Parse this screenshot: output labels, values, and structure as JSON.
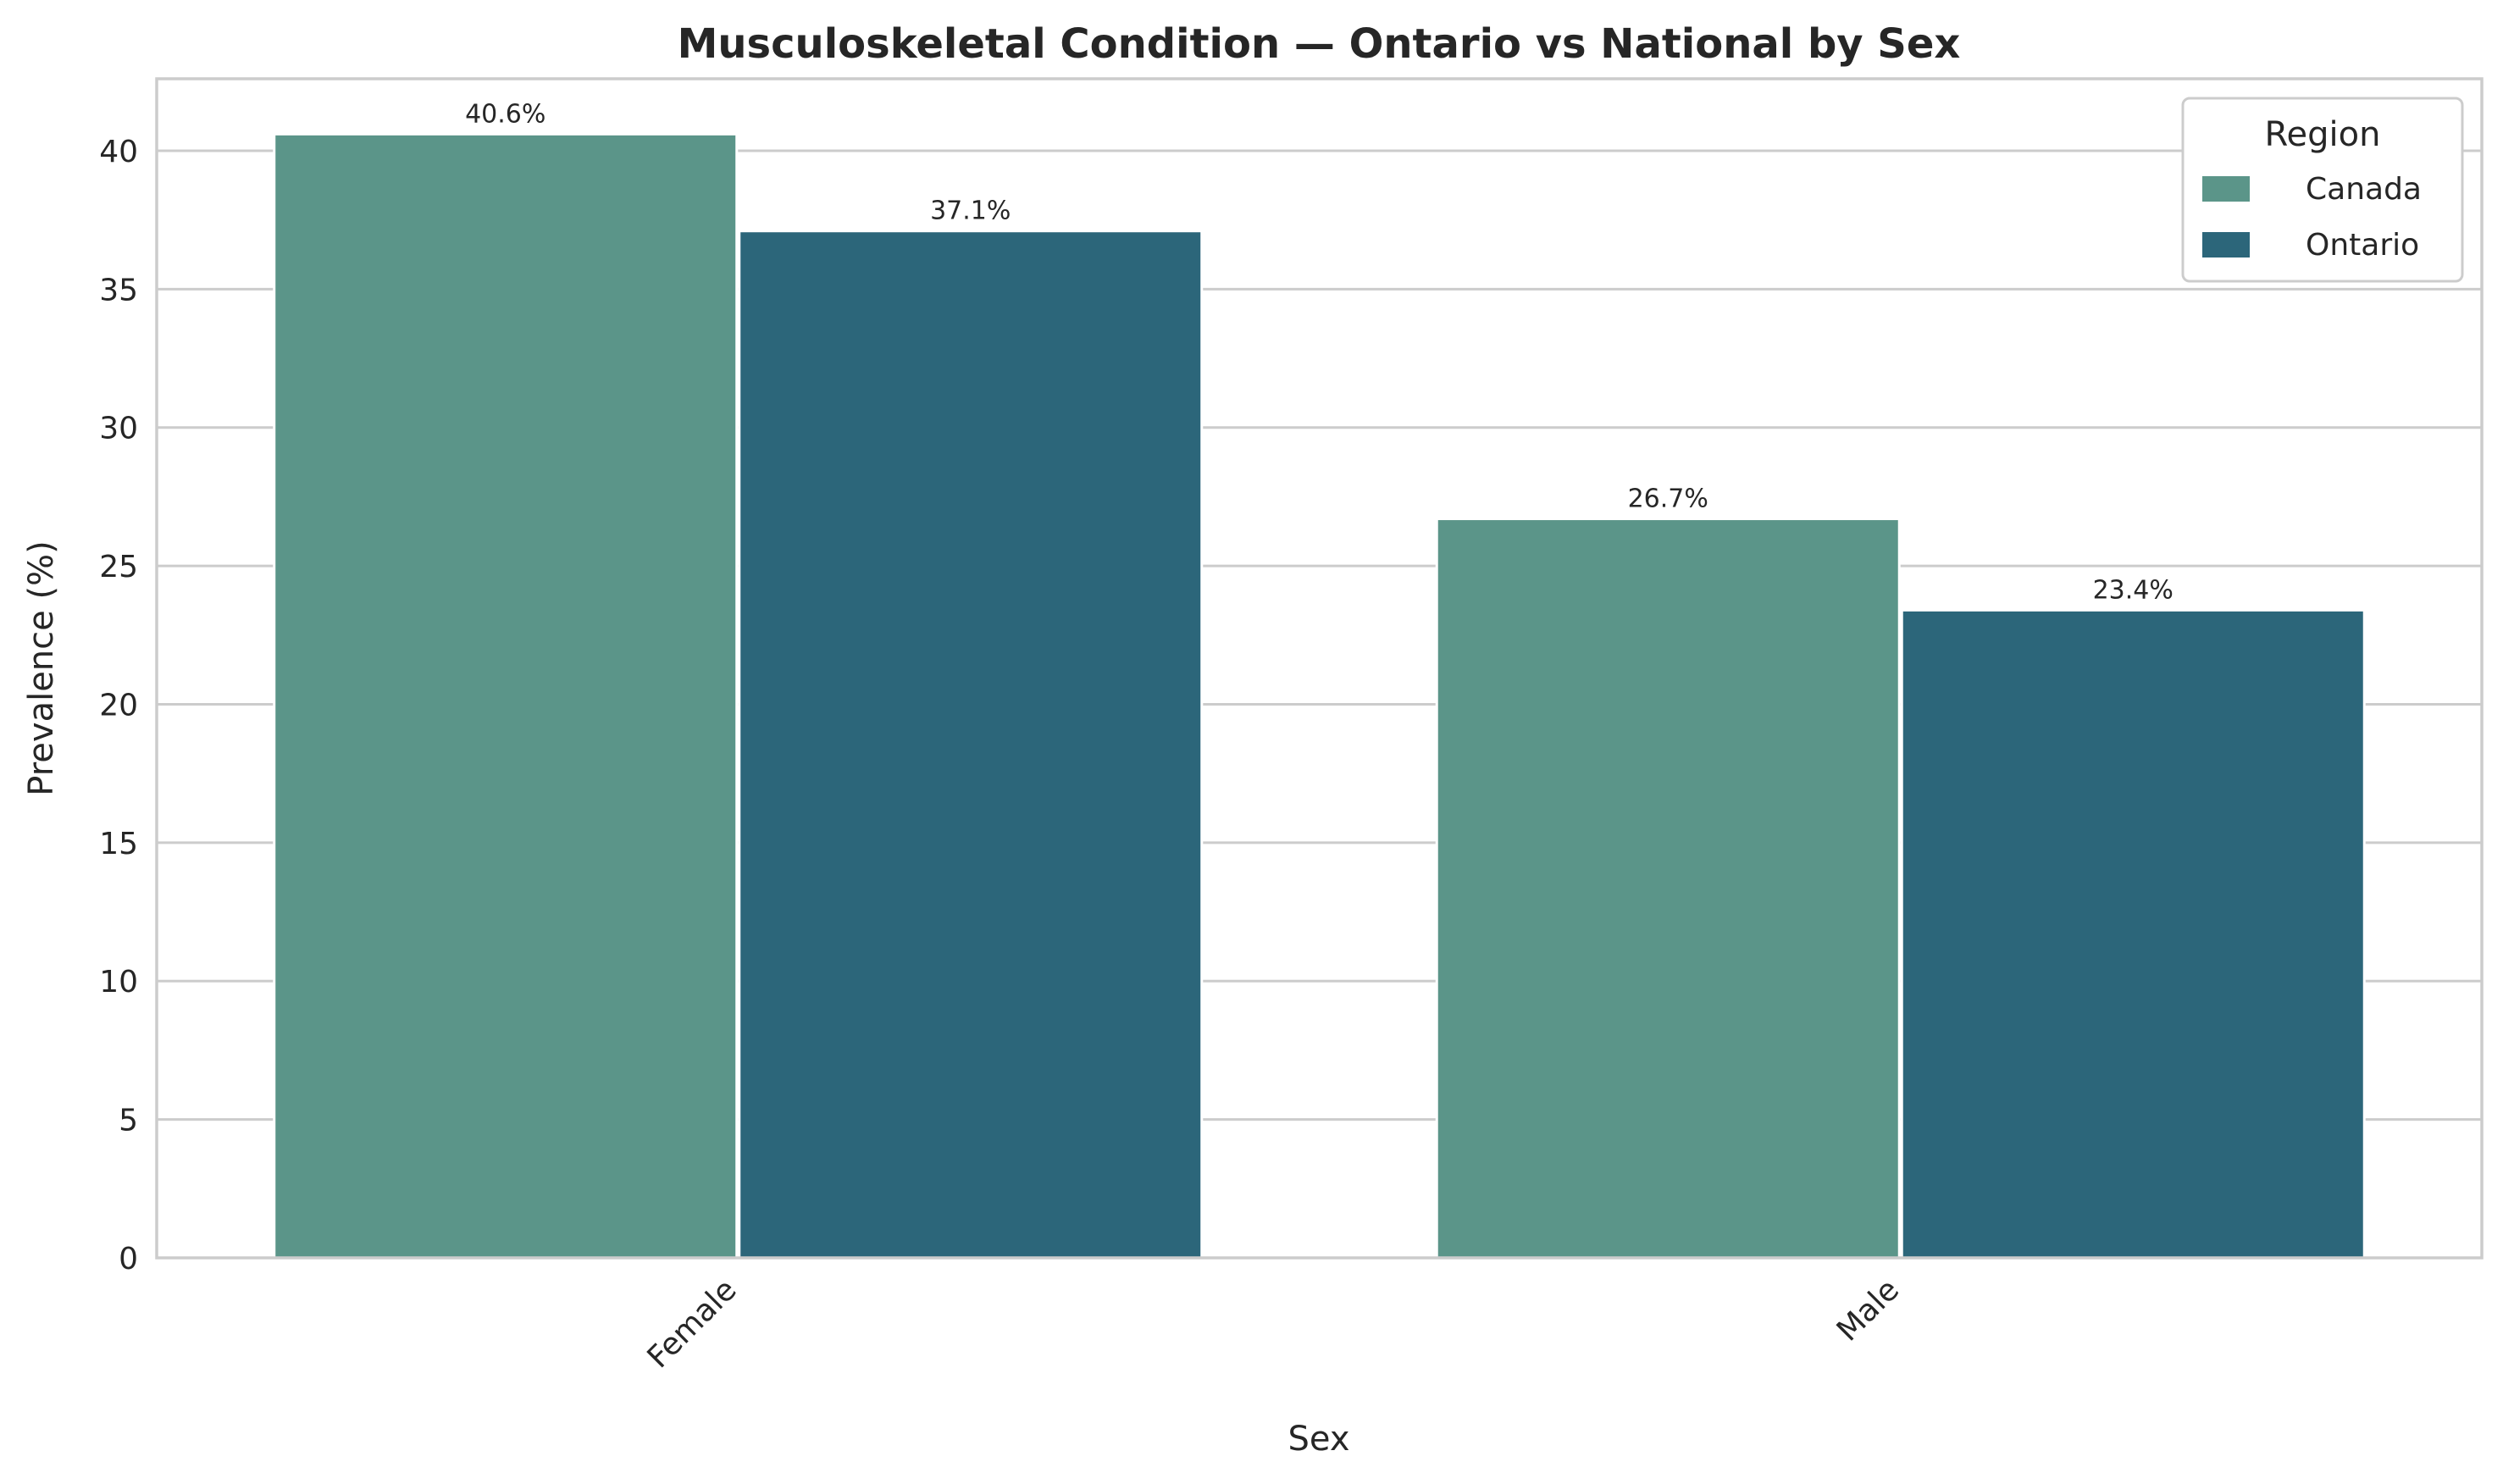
{
  "chart_data": {
    "type": "bar",
    "title": "Musculoskeletal Condition — Ontario vs National by Sex",
    "xlabel": "Sex",
    "ylabel": "Prevalence (%)",
    "categories": [
      "Female",
      "Male"
    ],
    "series": [
      {
        "name": "Canada",
        "values": [
          40.6,
          26.7
        ],
        "labels": [
          "40.6%",
          "26.7%"
        ],
        "color": "#5b9589"
      },
      {
        "name": "Ontario",
        "values": [
          37.1,
          23.4
        ],
        "labels": [
          "37.1%",
          "23.4%"
        ],
        "color": "#2c667a"
      }
    ],
    "ylim": [
      0,
      42.6
    ],
    "yticks": [
      0,
      5,
      10,
      15,
      20,
      25,
      30,
      35,
      40
    ],
    "grid": true,
    "legend": {
      "title": "Region",
      "placement": "top-right"
    }
  }
}
